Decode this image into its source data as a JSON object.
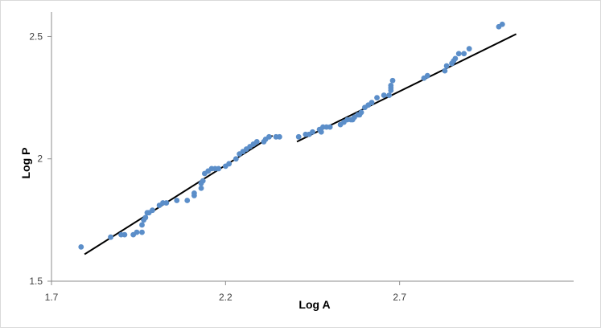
{
  "chart_data": {
    "type": "scatter",
    "xlabel": "Log A",
    "ylabel": "Log P",
    "xlim": [
      1.7,
      3.2
    ],
    "ylim": [
      1.5,
      2.6
    ],
    "x_ticks": [
      "1.7",
      "2.2",
      "2.7"
    ],
    "y_ticks": [
      "1.5",
      "2",
      "2.5"
    ],
    "grid": false,
    "colors": {
      "points": "#5b8ec9",
      "lines": "#000000",
      "axis": "#8c8c8c"
    },
    "series": [
      {
        "kind": "points",
        "x": [
          1.785,
          1.87,
          1.9,
          1.91,
          1.935,
          1.945,
          1.96,
          1.96,
          1.965,
          1.97,
          1.975,
          1.98,
          1.99,
          2.01,
          2.02,
          2.03,
          2.06,
          2.09,
          2.11,
          2.11,
          2.13,
          2.13,
          2.135,
          2.14,
          2.15,
          2.16,
          2.17,
          2.18,
          2.2,
          2.21,
          2.23,
          2.24,
          2.25,
          2.26,
          2.27,
          2.28,
          2.29,
          2.31,
          2.315,
          2.325,
          2.345,
          2.355
        ],
        "y": [
          1.64,
          1.68,
          1.69,
          1.69,
          1.69,
          1.7,
          1.7,
          1.73,
          1.75,
          1.76,
          1.78,
          1.78,
          1.79,
          1.81,
          1.82,
          1.82,
          1.83,
          1.83,
          1.85,
          1.86,
          1.88,
          1.9,
          1.91,
          1.94,
          1.95,
          1.96,
          1.96,
          1.96,
          1.97,
          1.98,
          2.0,
          2.02,
          2.03,
          2.04,
          2.05,
          2.06,
          2.07,
          2.07,
          2.08,
          2.09,
          2.09,
          2.09
        ]
      },
      {
        "kind": "points",
        "x": [
          2.41,
          2.43,
          2.44,
          2.45,
          2.47,
          2.475,
          2.48,
          2.49,
          2.5,
          2.53,
          2.54,
          2.55,
          2.56,
          2.565,
          2.57,
          2.58,
          2.585,
          2.59,
          2.6,
          2.61,
          2.62,
          2.635,
          2.655,
          2.67,
          2.675,
          2.675,
          2.675,
          2.68,
          2.77,
          2.78,
          2.83,
          2.835,
          2.85,
          2.855,
          2.86,
          2.87,
          2.885,
          2.9,
          2.985,
          2.995
        ],
        "y": [
          2.09,
          2.1,
          2.1,
          2.11,
          2.12,
          2.11,
          2.13,
          2.13,
          2.13,
          2.14,
          2.15,
          2.16,
          2.16,
          2.16,
          2.17,
          2.18,
          2.18,
          2.19,
          2.21,
          2.22,
          2.23,
          2.25,
          2.26,
          2.26,
          2.28,
          2.29,
          2.3,
          2.32,
          2.33,
          2.34,
          2.36,
          2.38,
          2.39,
          2.4,
          2.41,
          2.43,
          2.43,
          2.45,
          2.54,
          2.55
        ]
      },
      {
        "kind": "line",
        "x": [
          1.795,
          2.335
        ],
        "y": [
          1.61,
          2.095
        ]
      },
      {
        "kind": "line",
        "x": [
          2.405,
          3.035
        ],
        "y": [
          2.07,
          2.51
        ]
      }
    ]
  }
}
